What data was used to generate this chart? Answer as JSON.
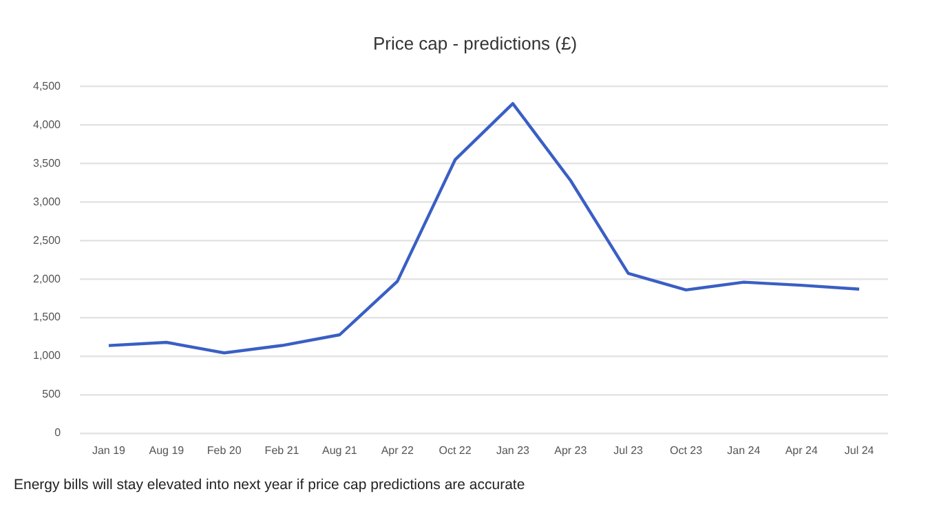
{
  "chart_data": {
    "type": "line",
    "title": "Price cap - predictions (£)",
    "categories": [
      "Jan 19",
      "Aug 19",
      "Feb 20",
      "Feb 21",
      "Aug 21",
      "Apr 22",
      "Oct 22",
      "Jan 23",
      "Apr 23",
      "Jul 23",
      "Oct 23",
      "Jan 24",
      "Apr 24",
      "Jul 24"
    ],
    "series": [
      {
        "color": "#3a5fc4",
        "values": [
          1137,
          1179,
          1042,
          1138,
          1277,
          1971,
          3549,
          4279,
          3280,
          2074,
          1860,
          1960,
          1920,
          1870
        ]
      }
    ],
    "ylim": [
      0,
      4500
    ],
    "yticks": [
      {
        "value": 0,
        "label": "0"
      },
      {
        "value": 500,
        "label": "500"
      },
      {
        "value": 1000,
        "label": "1,000"
      },
      {
        "value": 1500,
        "label": "1,500"
      },
      {
        "value": 2000,
        "label": "2,000"
      },
      {
        "value": 2500,
        "label": "2,500"
      },
      {
        "value": 3000,
        "label": "3,000"
      },
      {
        "value": 3500,
        "label": "3,500"
      },
      {
        "value": 4000,
        "label": "4,000"
      },
      {
        "value": 4500,
        "label": "4,500"
      }
    ],
    "grid": "y",
    "legend": false,
    "marker": "none",
    "line_style": "solid",
    "annotations": [
      "Energy bills will stay elevated into next year if price cap predictions are accurate"
    ]
  }
}
